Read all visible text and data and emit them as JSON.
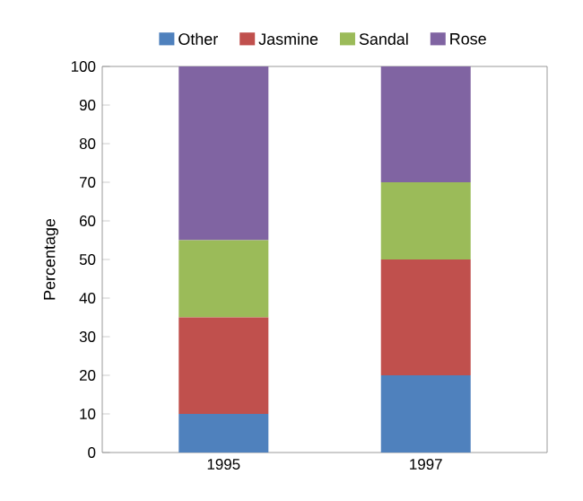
{
  "chart_data": {
    "type": "bar",
    "stacked": true,
    "ylabel": "Percentage",
    "categories": [
      "1995",
      "1997"
    ],
    "series": [
      {
        "name": "Other",
        "color": "#4f81bd",
        "values": [
          10,
          20
        ]
      },
      {
        "name": "Jasmine",
        "color": "#c0504d",
        "values": [
          25,
          30
        ]
      },
      {
        "name": "Sandal",
        "color": "#9bbb59",
        "values": [
          20,
          20
        ]
      },
      {
        "name": "Rose",
        "color": "#8064a2",
        "values": [
          45,
          30
        ]
      }
    ],
    "ylim": [
      0,
      100
    ],
    "yticks": [
      0,
      10,
      20,
      30,
      40,
      50,
      60,
      70,
      80,
      90,
      100
    ],
    "legend": "top"
  }
}
